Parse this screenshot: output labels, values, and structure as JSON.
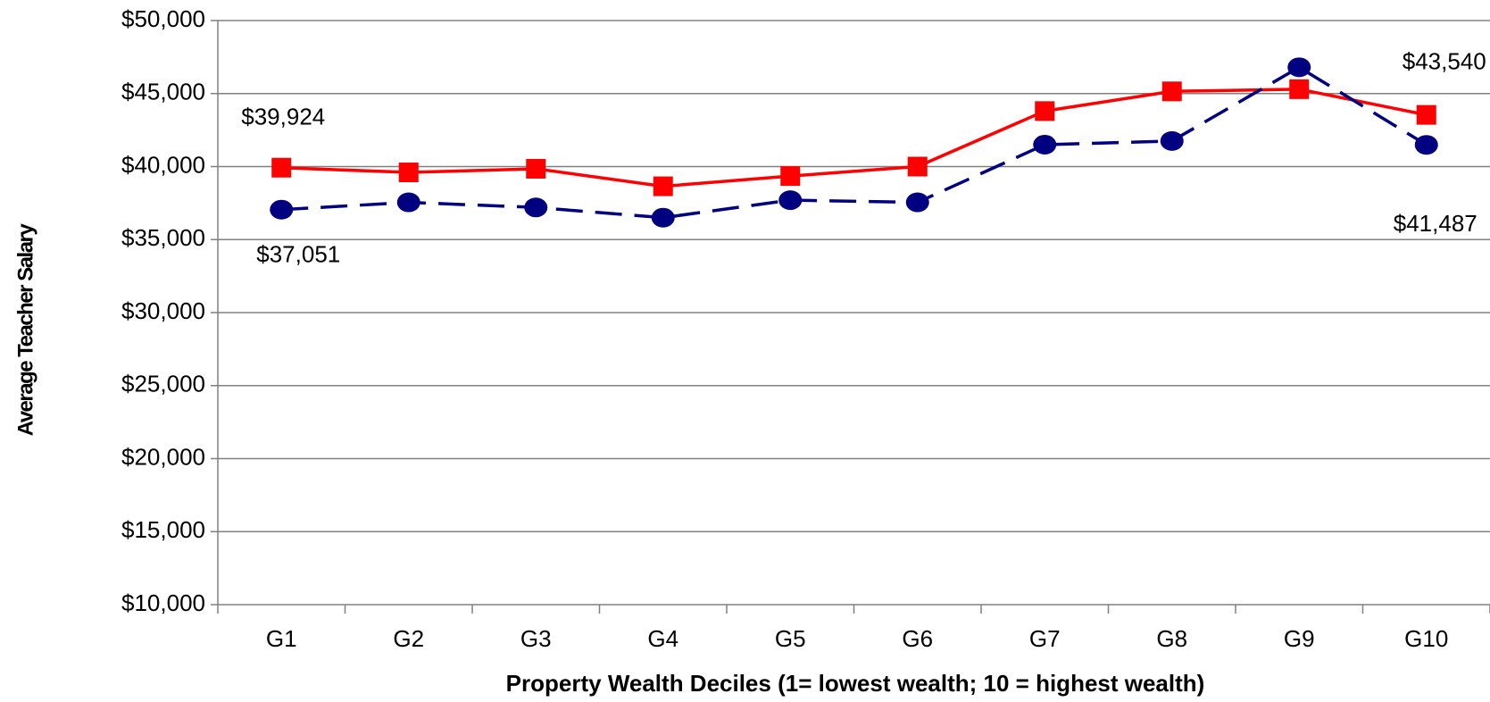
{
  "chart_data": {
    "type": "line",
    "x_label": "Property Wealth Deciles (1= lowest wealth; 10 = highest wealth)",
    "y_label": "Average Teacher Salary",
    "categories": [
      "G1",
      "G2",
      "G3",
      "G4",
      "G5",
      "G6",
      "G7",
      "G8",
      "G9",
      "G10"
    ],
    "series": [
      {
        "color": "#ff0000",
        "marker": "square",
        "dashed": false,
        "values": [
          39924,
          39600,
          39850,
          38650,
          39350,
          40000,
          43800,
          45150,
          45300,
          43540
        ],
        "value_labels": [
          "$39,924",
          null,
          null,
          null,
          null,
          null,
          null,
          null,
          null,
          "$43,540"
        ]
      },
      {
        "color": "#000080",
        "marker": "circle",
        "dashed": true,
        "values": [
          37051,
          37550,
          37200,
          36500,
          37700,
          37550,
          41500,
          41750,
          46800,
          41487
        ],
        "value_labels": [
          "$37,051",
          null,
          null,
          null,
          null,
          null,
          null,
          null,
          null,
          "$41,487"
        ]
      }
    ],
    "ylim": [
      10000,
      50000
    ],
    "yticks": [
      {
        "value": 10000,
        "label": "$10,000"
      },
      {
        "value": 15000,
        "label": "$15,000"
      },
      {
        "value": 20000,
        "label": "$20,000"
      },
      {
        "value": 25000,
        "label": "$25,000"
      },
      {
        "value": 30000,
        "label": "$30,000"
      },
      {
        "value": 35000,
        "label": "$35,000"
      },
      {
        "value": 40000,
        "label": "$40,000"
      },
      {
        "value": 45000,
        "label": "$45,000"
      },
      {
        "value": 50000,
        "label": "$50,000"
      }
    ],
    "grid": true
  }
}
